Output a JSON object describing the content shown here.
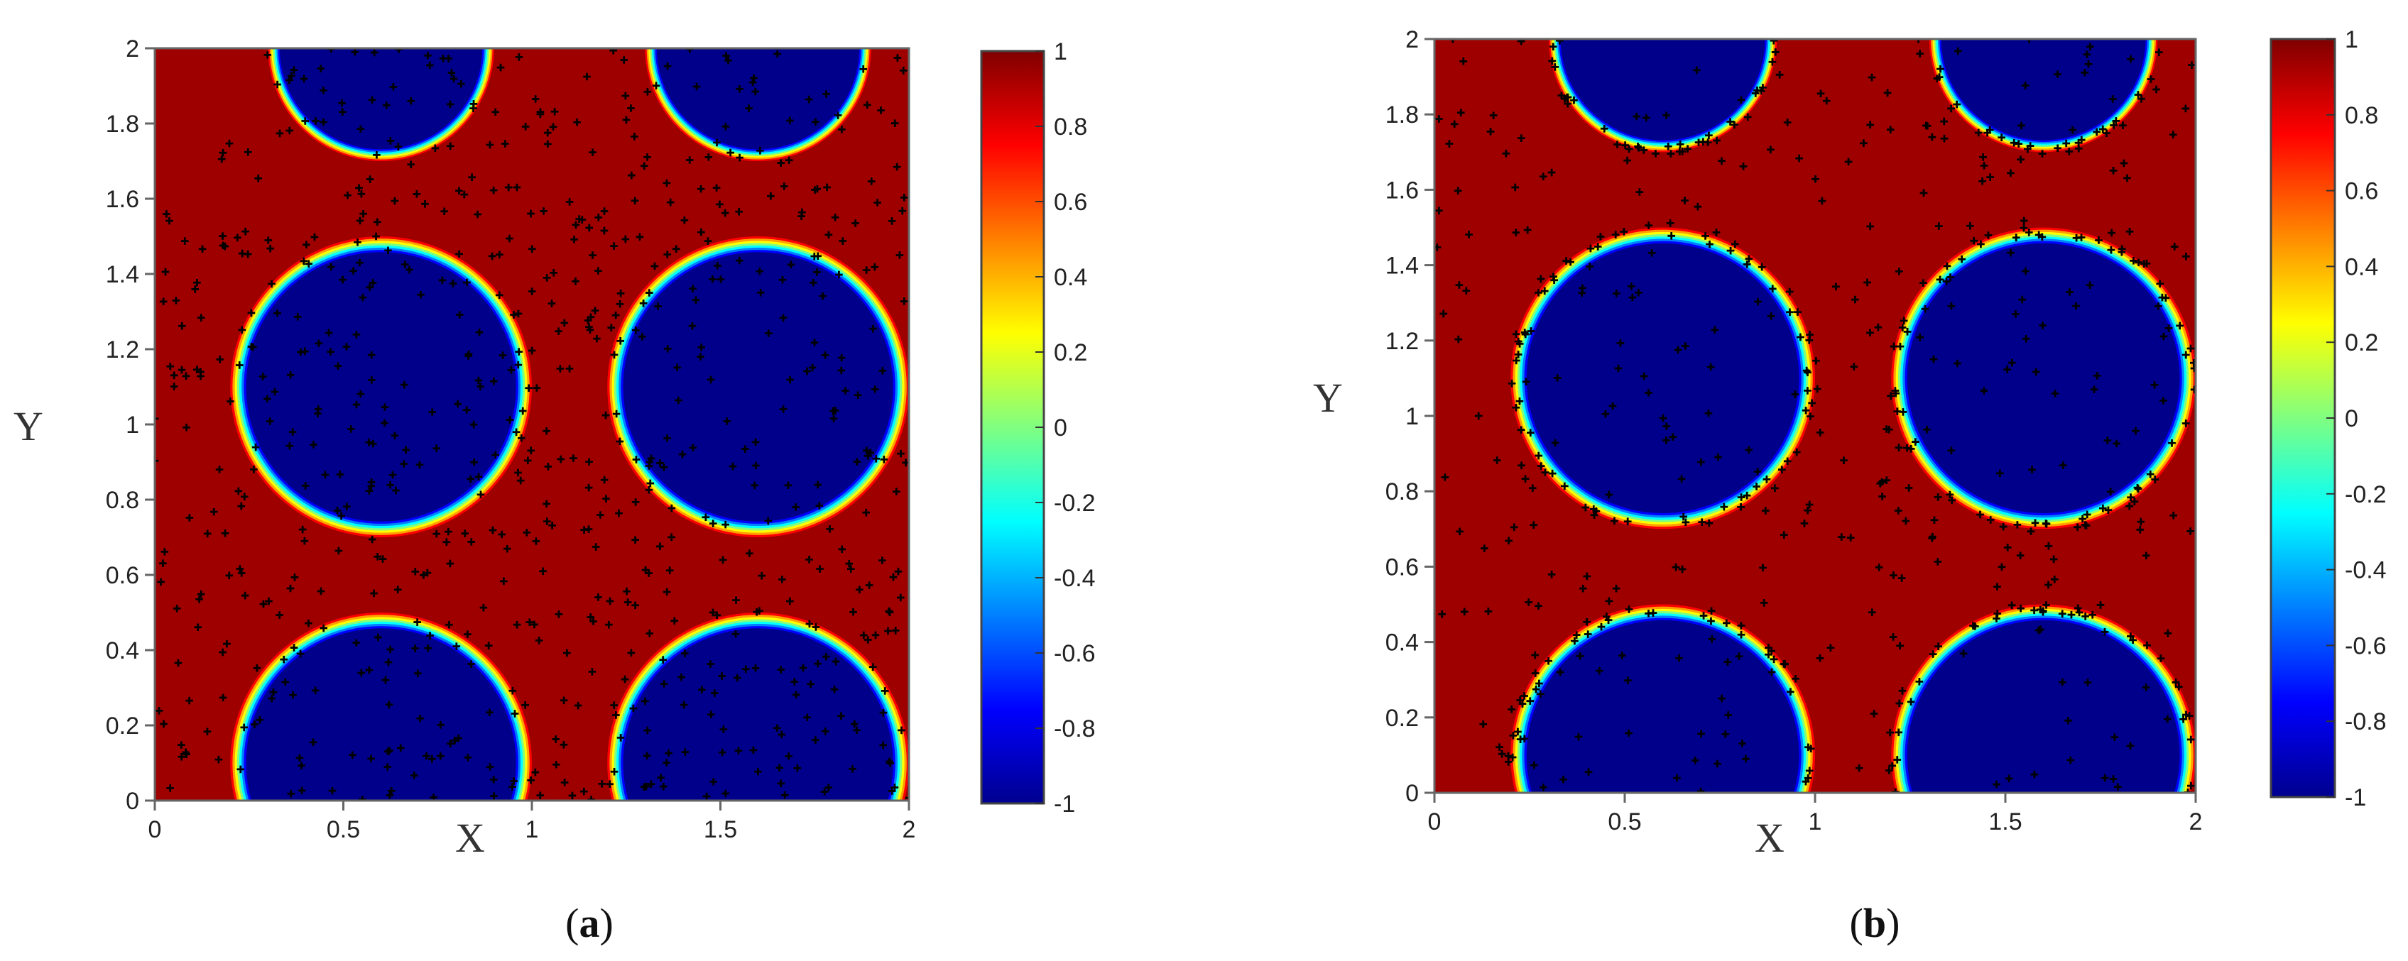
{
  "chart_data": [
    {
      "type": "heatmap",
      "caption_letter": "a",
      "xlabel": "X",
      "ylabel": "Y",
      "xlim": [
        0,
        2
      ],
      "ylim": [
        0,
        2
      ],
      "x_ticks": [
        "0",
        "0.5",
        "1",
        "1.5",
        "2"
      ],
      "y_ticks": [
        "0",
        "0.2",
        "0.4",
        "0.6",
        "0.8",
        "1",
        "1.2",
        "1.4",
        "1.6",
        "1.8",
        "2"
      ],
      "colorbar": {
        "range": [
          -1,
          1
        ],
        "ticks": [
          "1",
          "0.8",
          "0.6",
          "0.4",
          "0.2",
          "0",
          "-0.2",
          "-0.4",
          "-0.6",
          "-0.8",
          "-1"
        ],
        "colormap": "jet"
      },
      "field": {
        "background_value": 1,
        "inside_value": -1,
        "droplets": [
          {
            "cx": 0.6,
            "cy": 2.0,
            "r": 0.3
          },
          {
            "cx": 1.6,
            "cy": 2.0,
            "r": 0.3
          },
          {
            "cx": 0.6,
            "cy": 1.1,
            "r": 0.4
          },
          {
            "cx": 1.6,
            "cy": 1.1,
            "r": 0.4
          },
          {
            "cx": 0.6,
            "cy": 0.1,
            "r": 0.4
          },
          {
            "cx": 1.6,
            "cy": 0.1,
            "r": 0.4
          }
        ]
      },
      "scatter_points": {
        "marker": "+",
        "color": "#000000",
        "distribution": "uniform",
        "count": 720
      }
    },
    {
      "type": "heatmap",
      "caption_letter": "b",
      "xlabel": "X",
      "ylabel": "Y",
      "xlim": [
        0,
        2
      ],
      "ylim": [
        0,
        2
      ],
      "x_ticks": [
        "0",
        "0.5",
        "1",
        "1.5",
        "2"
      ],
      "y_ticks": [
        "0",
        "0.2",
        "0.4",
        "0.6",
        "0.8",
        "1",
        "1.2",
        "1.4",
        "1.6",
        "1.8",
        "2"
      ],
      "colorbar": {
        "range": [
          -1,
          1
        ],
        "ticks": [
          "1",
          "0.8",
          "0.6",
          "0.4",
          "0.2",
          "0",
          "-0.2",
          "-0.4",
          "-0.6",
          "-0.8",
          "-1"
        ],
        "colormap": "jet"
      },
      "field": {
        "background_value": 1,
        "inside_value": -1,
        "droplets": [
          {
            "cx": 0.6,
            "cy": 2.0,
            "r": 0.3
          },
          {
            "cx": 1.6,
            "cy": 2.0,
            "r": 0.3
          },
          {
            "cx": 0.6,
            "cy": 1.1,
            "r": 0.4
          },
          {
            "cx": 1.6,
            "cy": 1.1,
            "r": 0.4
          },
          {
            "cx": 0.6,
            "cy": 0.1,
            "r": 0.4
          },
          {
            "cx": 1.6,
            "cy": 0.1,
            "r": 0.4
          }
        ]
      },
      "scatter_points": {
        "marker": "+",
        "color": "#000000",
        "distribution": "clustered near interfaces",
        "count": 720
      }
    }
  ]
}
